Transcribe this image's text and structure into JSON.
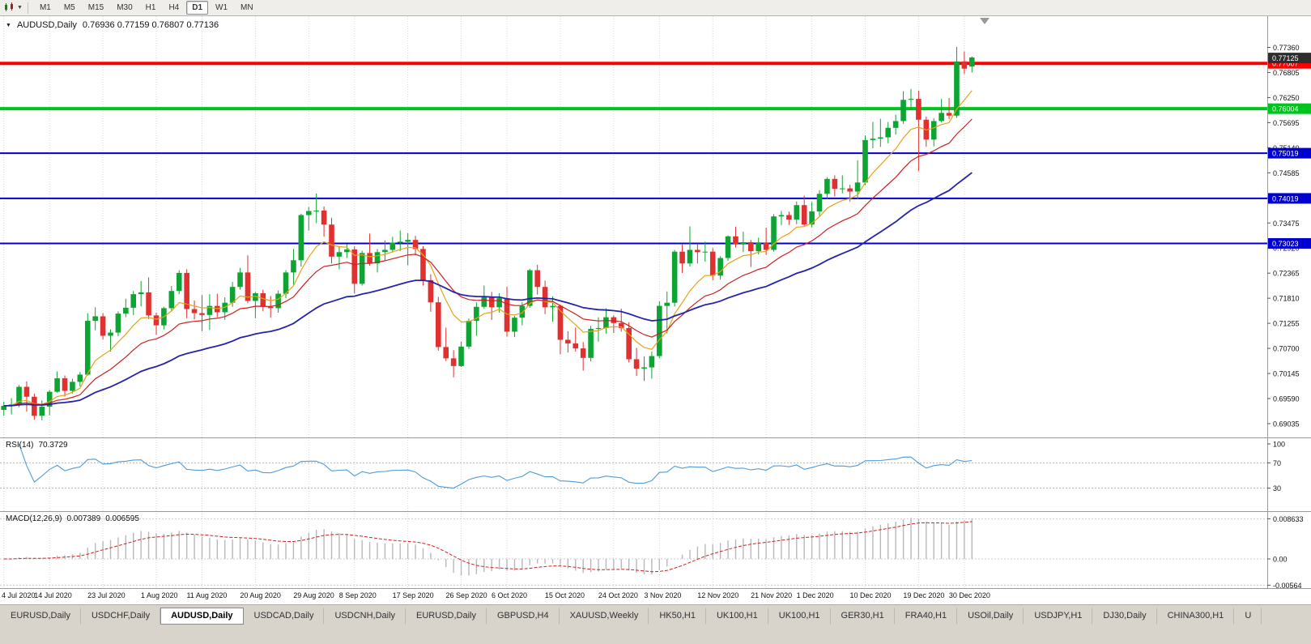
{
  "toolbar": {
    "timeframes": [
      "M1",
      "M5",
      "M15",
      "M30",
      "H1",
      "H4",
      "D1",
      "W1",
      "MN"
    ],
    "active_timeframe": "D1",
    "caret_icon": "▼"
  },
  "chart": {
    "collapse_icon": "▼",
    "title": "AUDUSD,Daily",
    "ohlc": "0.76936 0.77159 0.76807 0.77136"
  },
  "price_axis": {
    "ticks": [
      "0.77360",
      "0.76805",
      "0.76250",
      "0.75695",
      "0.75140",
      "0.74585",
      "0.74030",
      "0.73475",
      "0.72920",
      "0.72365",
      "0.71810",
      "0.71255",
      "0.70700",
      "0.70145",
      "0.69590",
      "0.69035"
    ],
    "current_price": {
      "label": "0.77125",
      "value": 0.77125,
      "bg": "#2e2e2e"
    },
    "levels": [
      {
        "label": "0.77007",
        "value": 0.77007,
        "color": "#fe0000",
        "width": 4
      },
      {
        "label": "0.76004",
        "value": 0.76004,
        "color": "#00c41e",
        "width": 4
      },
      {
        "label": "0.75019",
        "value": 0.75019,
        "color": "#0000d0",
        "width": 2
      },
      {
        "label": "0.74019",
        "value": 0.74019,
        "color": "#0000d0",
        "width": 2
      },
      {
        "label": "0.73023",
        "value": 0.73023,
        "color": "#0000d0",
        "width": 2
      }
    ]
  },
  "chart_data": {
    "type": "candlestick",
    "symbol": "AUDUSD",
    "period": "Daily",
    "price_range": {
      "min": 0.6873,
      "max": 0.7805
    },
    "x_ticks": [
      {
        "label": "4 Jul 2020",
        "index": 0
      },
      {
        "label": "14 Jul 2020",
        "index": 6
      },
      {
        "label": "23 Jul 2020",
        "index": 13
      },
      {
        "label": "1 Aug 2020",
        "index": 20
      },
      {
        "label": "11 Aug 2020",
        "index": 26
      },
      {
        "label": "20 Aug 2020",
        "index": 33
      },
      {
        "label": "29 Aug 2020",
        "index": 40
      },
      {
        "label": "8 Sep 2020",
        "index": 46
      },
      {
        "label": "17 Sep 2020",
        "index": 53
      },
      {
        "label": "26 Sep 2020",
        "index": 60
      },
      {
        "label": "6 Oct 2020",
        "index": 66
      },
      {
        "label": "15 Oct 2020",
        "index": 73
      },
      {
        "label": "24 Oct 2020",
        "index": 80
      },
      {
        "label": "3 Nov 2020",
        "index": 86
      },
      {
        "label": "12 Nov 2020",
        "index": 93
      },
      {
        "label": "21 Nov 2020",
        "index": 100
      },
      {
        "label": "1 Dec 2020",
        "index": 106
      },
      {
        "label": "10 Dec 2020",
        "index": 113
      },
      {
        "label": "19 Dec 2020",
        "index": 120
      },
      {
        "label": "30 Dec 2020",
        "index": 126
      }
    ],
    "moving_averages": [
      {
        "name": "ma-fast",
        "period": 8,
        "method": "ema",
        "color": "#e8a21a",
        "width": 1.2
      },
      {
        "name": "ma-mid",
        "period": 17,
        "method": "ema",
        "color": "#cc2222",
        "width": 1.2
      },
      {
        "name": "ma-slow",
        "period": 40,
        "method": "ema",
        "color": "#2424aa",
        "width": 1.8
      }
    ],
    "candles": [
      [
        0.6934,
        0.6952,
        0.6921,
        0.6943
      ],
      [
        0.6943,
        0.696,
        0.6924,
        0.6946
      ],
      [
        0.6946,
        0.6989,
        0.694,
        0.6985
      ],
      [
        0.6985,
        0.6997,
        0.693,
        0.6963
      ],
      [
        0.6963,
        0.697,
        0.6912,
        0.6921
      ],
      [
        0.6921,
        0.6955,
        0.6911,
        0.6941
      ],
      [
        0.6941,
        0.6978,
        0.6922,
        0.6974
      ],
      [
        0.6974,
        0.7019,
        0.6972,
        0.7004
      ],
      [
        0.7004,
        0.701,
        0.6963,
        0.6976
      ],
      [
        0.6976,
        0.7003,
        0.697,
        0.6996
      ],
      [
        0.6996,
        0.7018,
        0.6986,
        0.7012
      ],
      [
        0.7012,
        0.7148,
        0.701,
        0.7131
      ],
      [
        0.7131,
        0.7161,
        0.711,
        0.7141
      ],
      [
        0.7141,
        0.7148,
        0.709,
        0.7098
      ],
      [
        0.7098,
        0.7112,
        0.7063,
        0.7105
      ],
      [
        0.7105,
        0.7152,
        0.7097,
        0.7147
      ],
      [
        0.7147,
        0.718,
        0.7139,
        0.716
      ],
      [
        0.716,
        0.7197,
        0.7144,
        0.719
      ],
      [
        0.719,
        0.7219,
        0.7163,
        0.7194
      ],
      [
        0.7194,
        0.7227,
        0.7135,
        0.7143
      ],
      [
        0.7143,
        0.7149,
        0.71,
        0.7121
      ],
      [
        0.7121,
        0.7162,
        0.7112,
        0.7159
      ],
      [
        0.7159,
        0.7208,
        0.7153,
        0.7197
      ],
      [
        0.7197,
        0.7243,
        0.719,
        0.7237
      ],
      [
        0.7237,
        0.7245,
        0.7137,
        0.7157
      ],
      [
        0.7157,
        0.7176,
        0.7134,
        0.7148
      ],
      [
        0.7148,
        0.7188,
        0.7108,
        0.7144
      ],
      [
        0.7144,
        0.719,
        0.7111,
        0.7164
      ],
      [
        0.7164,
        0.7191,
        0.7139,
        0.715
      ],
      [
        0.715,
        0.7183,
        0.7133,
        0.7171
      ],
      [
        0.7171,
        0.7217,
        0.7162,
        0.7206
      ],
      [
        0.7206,
        0.7248,
        0.72,
        0.7238
      ],
      [
        0.7238,
        0.7276,
        0.717,
        0.7175
      ],
      [
        0.7175,
        0.7195,
        0.7137,
        0.7192
      ],
      [
        0.7192,
        0.72,
        0.7152,
        0.7162
      ],
      [
        0.7162,
        0.7186,
        0.7138,
        0.7159
      ],
      [
        0.7159,
        0.7198,
        0.7149,
        0.7191
      ],
      [
        0.7191,
        0.7243,
        0.7181,
        0.7238
      ],
      [
        0.7238,
        0.729,
        0.7211,
        0.7265
      ],
      [
        0.7265,
        0.7368,
        0.7251,
        0.7365
      ],
      [
        0.7365,
        0.7383,
        0.7331,
        0.7374
      ],
      [
        0.7374,
        0.7413,
        0.7347,
        0.7375
      ],
      [
        0.7375,
        0.7384,
        0.7317,
        0.7344
      ],
      [
        0.7344,
        0.7359,
        0.7258,
        0.7273
      ],
      [
        0.7273,
        0.7296,
        0.7245,
        0.7283
      ],
      [
        0.7283,
        0.7301,
        0.727,
        0.7289
      ],
      [
        0.7289,
        0.7296,
        0.7192,
        0.7213
      ],
      [
        0.7213,
        0.7286,
        0.7209,
        0.7281
      ],
      [
        0.7281,
        0.7324,
        0.7253,
        0.7258
      ],
      [
        0.7258,
        0.729,
        0.7238,
        0.7283
      ],
      [
        0.7283,
        0.7309,
        0.7264,
        0.7288
      ],
      [
        0.7288,
        0.7317,
        0.7282,
        0.7304
      ],
      [
        0.7304,
        0.7331,
        0.7285,
        0.7306
      ],
      [
        0.7306,
        0.7325,
        0.7254,
        0.731
      ],
      [
        0.731,
        0.7319,
        0.7276,
        0.729
      ],
      [
        0.729,
        0.7296,
        0.7209,
        0.7221
      ],
      [
        0.7221,
        0.7234,
        0.7151,
        0.7172
      ],
      [
        0.7172,
        0.7184,
        0.7065,
        0.7073
      ],
      [
        0.7073,
        0.7116,
        0.7042,
        0.7048
      ],
      [
        0.7048,
        0.7066,
        0.7006,
        0.7031
      ],
      [
        0.7031,
        0.7085,
        0.7029,
        0.7074
      ],
      [
        0.7074,
        0.7136,
        0.7069,
        0.7131
      ],
      [
        0.7131,
        0.7172,
        0.7098,
        0.7162
      ],
      [
        0.7162,
        0.7209,
        0.7158,
        0.7183
      ],
      [
        0.7183,
        0.7195,
        0.7133,
        0.7161
      ],
      [
        0.7161,
        0.7192,
        0.7149,
        0.7181
      ],
      [
        0.7181,
        0.7206,
        0.7096,
        0.7107
      ],
      [
        0.7107,
        0.7142,
        0.7095,
        0.7138
      ],
      [
        0.7138,
        0.7172,
        0.7121,
        0.7164
      ],
      [
        0.7164,
        0.7246,
        0.716,
        0.7243
      ],
      [
        0.7243,
        0.7255,
        0.7189,
        0.7206
      ],
      [
        0.7206,
        0.722,
        0.7146,
        0.7161
      ],
      [
        0.7161,
        0.7185,
        0.7129,
        0.7164
      ],
      [
        0.7164,
        0.7167,
        0.7057,
        0.7089
      ],
      [
        0.7089,
        0.7108,
        0.7061,
        0.7081
      ],
      [
        0.7081,
        0.7116,
        0.7063,
        0.707
      ],
      [
        0.707,
        0.7084,
        0.7021,
        0.7049
      ],
      [
        0.7049,
        0.712,
        0.7041,
        0.7113
      ],
      [
        0.7113,
        0.7139,
        0.7085,
        0.7115
      ],
      [
        0.7115,
        0.7159,
        0.7103,
        0.7139
      ],
      [
        0.7139,
        0.7143,
        0.7104,
        0.7126
      ],
      [
        0.7126,
        0.7158,
        0.7107,
        0.7115
      ],
      [
        0.7115,
        0.7128,
        0.7039,
        0.7046
      ],
      [
        0.7046,
        0.7071,
        0.7009,
        0.7025
      ],
      [
        0.7025,
        0.7052,
        0.6998,
        0.7028
      ],
      [
        0.7028,
        0.7063,
        0.7003,
        0.7053
      ],
      [
        0.7053,
        0.7174,
        0.7048,
        0.7164
      ],
      [
        0.7164,
        0.7196,
        0.7103,
        0.7171
      ],
      [
        0.7171,
        0.7288,
        0.7163,
        0.7284
      ],
      [
        0.7284,
        0.73,
        0.7237,
        0.7258
      ],
      [
        0.7258,
        0.734,
        0.7251,
        0.7288
      ],
      [
        0.7288,
        0.7302,
        0.7258,
        0.7283
      ],
      [
        0.7283,
        0.7306,
        0.7262,
        0.7284
      ],
      [
        0.7284,
        0.7292,
        0.7221,
        0.7231
      ],
      [
        0.7231,
        0.7274,
        0.7222,
        0.727
      ],
      [
        0.727,
        0.732,
        0.7264,
        0.7318
      ],
      [
        0.7318,
        0.7339,
        0.7293,
        0.73
      ],
      [
        0.73,
        0.7328,
        0.7283,
        0.7305
      ],
      [
        0.7305,
        0.731,
        0.725,
        0.7285
      ],
      [
        0.7285,
        0.7315,
        0.7278,
        0.7303
      ],
      [
        0.7303,
        0.7337,
        0.7277,
        0.7288
      ],
      [
        0.7288,
        0.7367,
        0.7284,
        0.7362
      ],
      [
        0.7362,
        0.7374,
        0.7343,
        0.7365
      ],
      [
        0.7365,
        0.7373,
        0.7343,
        0.7355
      ],
      [
        0.7355,
        0.7395,
        0.7345,
        0.7387
      ],
      [
        0.7387,
        0.7408,
        0.7339,
        0.7344
      ],
      [
        0.7344,
        0.7394,
        0.7338,
        0.7373
      ],
      [
        0.7373,
        0.742,
        0.7363,
        0.7412
      ],
      [
        0.7412,
        0.7449,
        0.7401,
        0.7445
      ],
      [
        0.7445,
        0.7453,
        0.7406,
        0.7423
      ],
      [
        0.7423,
        0.7453,
        0.7413,
        0.7424
      ],
      [
        0.7424,
        0.7432,
        0.7395,
        0.7417
      ],
      [
        0.7417,
        0.7486,
        0.74,
        0.7437
      ],
      [
        0.7437,
        0.7541,
        0.7431,
        0.7531
      ],
      [
        0.7531,
        0.7571,
        0.7513,
        0.7534
      ],
      [
        0.7534,
        0.7578,
        0.7516,
        0.7537
      ],
      [
        0.7537,
        0.7571,
        0.7524,
        0.7558
      ],
      [
        0.7558,
        0.7587,
        0.7543,
        0.7573
      ],
      [
        0.7573,
        0.7639,
        0.7567,
        0.762
      ],
      [
        0.762,
        0.7644,
        0.7598,
        0.7622
      ],
      [
        0.7622,
        0.764,
        0.7462,
        0.7576
      ],
      [
        0.7576,
        0.7583,
        0.7516,
        0.7532
      ],
      [
        0.7532,
        0.7579,
        0.7517,
        0.7573
      ],
      [
        0.7573,
        0.7622,
        0.757,
        0.7591
      ],
      [
        0.7591,
        0.7624,
        0.7577,
        0.7585
      ],
      [
        0.7585,
        0.7737,
        0.758,
        0.7705
      ],
      [
        0.7705,
        0.7727,
        0.7677,
        0.7689
      ],
      [
        0.76936,
        0.77159,
        0.76807,
        0.77136
      ]
    ]
  },
  "rsi": {
    "label": "RSI(14)",
    "value_label": "70.3729",
    "period": 14,
    "axis_labels": [
      "100",
      "70",
      "30"
    ],
    "axis_values": [
      100,
      70,
      30
    ],
    "level_lines": [
      70,
      30
    ],
    "color": "#4f9bd7"
  },
  "macd": {
    "label": "MACD(12,26,9)",
    "macd_label": "0.007389",
    "signal_label": "0.006595",
    "fast": 12,
    "slow": 26,
    "signal_period": 9,
    "axis_labels": [
      "0.008633",
      "0.00",
      "-0.00564"
    ],
    "axis_values": [
      0.008633,
      0,
      -0.00564
    ],
    "hist_color": "#b8b8b8",
    "signal_color": "#cc2222"
  },
  "tabs": [
    {
      "label": "EURUSD,Daily",
      "active": false
    },
    {
      "label": "USDCHF,Daily",
      "active": false
    },
    {
      "label": "AUDUSD,Daily",
      "active": true
    },
    {
      "label": "USDCAD,Daily",
      "active": false
    },
    {
      "label": "USDCNH,Daily",
      "active": false
    },
    {
      "label": "EURUSD,Daily",
      "active": false
    },
    {
      "label": "GBPUSD,H4",
      "active": false
    },
    {
      "label": "XAUUSD,Weekly",
      "active": false
    },
    {
      "label": "HK50,H1",
      "active": false
    },
    {
      "label": "UK100,H1",
      "active": false
    },
    {
      "label": "UK100,H1",
      "active": false
    },
    {
      "label": "GER30,H1",
      "active": false
    },
    {
      "label": "FRA40,H1",
      "active": false
    },
    {
      "label": "USOil,Daily",
      "active": false
    },
    {
      "label": "USDJPY,H1",
      "active": false
    },
    {
      "label": "DJ30,Daily",
      "active": false
    },
    {
      "label": "CHINA300,H1",
      "active": false
    },
    {
      "label": "U",
      "active": false
    }
  ],
  "colors": {
    "bull": "#0ca432",
    "bear": "#e03030",
    "grid": "#d6d6d6",
    "axis_border": "#9a9a9a",
    "shift_marker": "#9a9a9a"
  }
}
